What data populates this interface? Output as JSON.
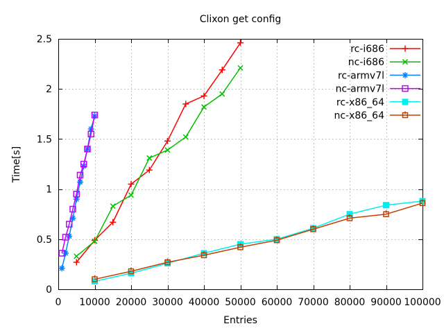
{
  "chart_data": {
    "type": "line",
    "title": "Clixon get config",
    "xlabel": "Entries",
    "ylabel": "Time[s]",
    "xlim": [
      0,
      100000
    ],
    "ylim": [
      0,
      2.5
    ],
    "xticks": {
      "values": [
        0,
        10000,
        20000,
        30000,
        40000,
        50000,
        60000,
        70000,
        80000,
        90000,
        100000
      ],
      "labels": [
        "0",
        "10000",
        "20000",
        "30000",
        "40000",
        "50000",
        "60000",
        "70000",
        "80000",
        "90000",
        "100000"
      ]
    },
    "yticks": {
      "values": [
        0,
        0.5,
        1,
        1.5,
        2,
        2.5
      ],
      "labels": [
        "0",
        "0.5",
        "1",
        "1.5",
        "2",
        "2.5"
      ]
    },
    "grid": true,
    "legend_position": "top-right-inside",
    "colors": {
      "grid": "#b0b0b0",
      "axis": "#000000",
      "background": "#ffffff",
      "text": "#000000"
    },
    "series": [
      {
        "name": "rc-i686",
        "color": "#ff0000",
        "marker": "plus",
        "x": [
          5000,
          10000,
          15000,
          20000,
          25000,
          30000,
          35000,
          40000,
          45000,
          50000
        ],
        "y": [
          0.27,
          0.49,
          0.67,
          1.05,
          1.19,
          1.48,
          1.85,
          1.93,
          2.19,
          2.46
        ]
      },
      {
        "name": "nc-i686",
        "color": "#00c000",
        "marker": "cross",
        "x": [
          5000,
          10000,
          15000,
          20000,
          25000,
          30000,
          35000,
          40000,
          45000,
          50000
        ],
        "y": [
          0.33,
          0.48,
          0.83,
          0.94,
          1.31,
          1.39,
          1.52,
          1.82,
          1.95,
          2.21
        ]
      },
      {
        "name": "rc-armv7l",
        "color": "#0080ff",
        "marker": "asterisk",
        "x": [
          1000,
          2000,
          3000,
          4000,
          5000,
          6000,
          7000,
          8000,
          9000,
          10000
        ],
        "y": [
          0.21,
          0.36,
          0.53,
          0.71,
          0.9,
          1.07,
          1.23,
          1.4,
          1.6,
          1.73
        ]
      },
      {
        "name": "nc-armv7l",
        "color": "#c000ff",
        "marker": "square-open",
        "x": [
          1000,
          2000,
          3000,
          4000,
          5000,
          6000,
          7000,
          8000,
          9000,
          10000
        ],
        "y": [
          0.36,
          0.52,
          0.65,
          0.8,
          0.95,
          1.14,
          1.25,
          1.4,
          1.55,
          1.74
        ]
      },
      {
        "name": "rc-x86_64",
        "color": "#00eeee",
        "marker": "square-filled",
        "x": [
          10000,
          20000,
          30000,
          40000,
          50000,
          60000,
          70000,
          80000,
          90000,
          100000
        ],
        "y": [
          0.08,
          0.16,
          0.26,
          0.36,
          0.45,
          0.5,
          0.61,
          0.75,
          0.84,
          0.88
        ]
      },
      {
        "name": "nc-x86_64",
        "color": "#c04000",
        "marker": "square-small-open",
        "x": [
          10000,
          20000,
          30000,
          40000,
          50000,
          60000,
          70000,
          80000,
          90000,
          100000
        ],
        "y": [
          0.1,
          0.18,
          0.27,
          0.34,
          0.42,
          0.49,
          0.6,
          0.71,
          0.75,
          0.86
        ]
      }
    ]
  }
}
